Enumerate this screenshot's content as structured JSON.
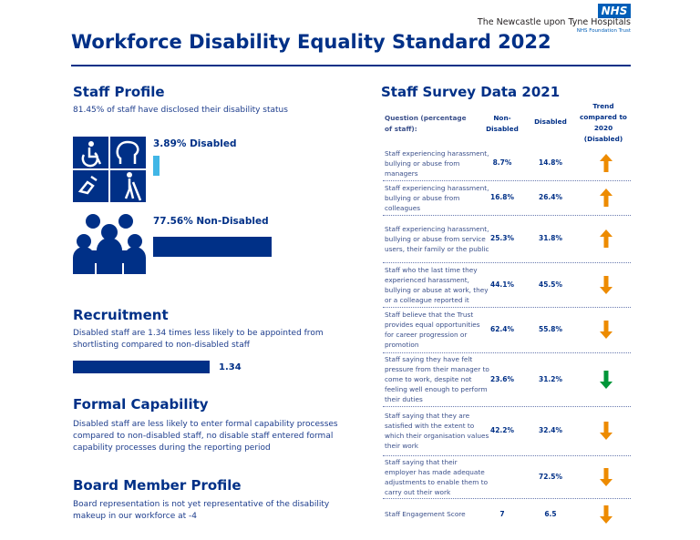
{
  "header": {
    "logo": "NHS",
    "org": "The Newcastle upon Tyne Hospitals",
    "org_sub": "NHS Foundation Trust",
    "title": "Workforce Disability Equality Standard 2022"
  },
  "staff_profile": {
    "heading": "Staff Profile",
    "text": "81.45% of staff have disclosed their disability status",
    "disabled": {
      "value": 3.89,
      "label": "3.89% Disabled",
      "color": "#41b6e6"
    },
    "non_disabled": {
      "value": 77.56,
      "label": "77.56% Non-Disabled",
      "color": "#003087"
    }
  },
  "recruitment": {
    "heading": "Recruitment",
    "text": "Disabled staff are 1.34 times less likely to be appointed from shortlisting compared to non-disabled staff",
    "ratio": 1.34
  },
  "formal_capability": {
    "heading": "Formal Capability",
    "text": "Disabled staff are less likely to enter formal capability processes compared to non-disabled staff, no disable staff entered formal capability processes during the reporting period"
  },
  "board": {
    "heading": "Board Member Profile",
    "text": "Board representation is not yet representative of the disability makeup in our workforce at -4"
  },
  "survey": {
    "heading": "Staff Survey Data 2021",
    "columns": [
      "Question (percentage of staff):",
      "Non-Disabled",
      "Disabled",
      "Trend compared to 2020 (Disabled)"
    ],
    "rows": [
      {
        "question": "Staff experiencing harassment, bullying or abuse from managers",
        "non_disabled": "8.7%",
        "disabled": "14.8%",
        "trend": {
          "direction": "up",
          "color": "#ed8b00"
        }
      },
      {
        "question": "Staff experiencing harassment, bullying or abuse from colleagues",
        "non_disabled": "16.8%",
        "disabled": "26.4%",
        "trend": {
          "direction": "up",
          "color": "#ed8b00"
        }
      },
      {
        "question": "Staff experiencing harassment, bullying or abuse from service users, their family or the public",
        "non_disabled": "25.3%",
        "disabled": "31.8%",
        "trend": {
          "direction": "up",
          "color": "#ed8b00"
        }
      },
      {
        "question": "Staff who the last time they experienced harassment, bullying or abuse at work, they or a colleague reported it",
        "non_disabled": "44.1%",
        "disabled": "45.5%",
        "trend": {
          "direction": "down",
          "color": "#ed8b00"
        }
      },
      {
        "question": "Staff believe that the Trust provides equal opportunities for career progression or promotion",
        "non_disabled": "62.4%",
        "disabled": "55.8%",
        "trend": {
          "direction": "down",
          "color": "#ed8b00"
        }
      },
      {
        "question": "Staff saying they have felt pressure from their manager to come to work, despite not feeling well enough to perform their duties",
        "non_disabled": "23.6%",
        "disabled": "31.2%",
        "trend": {
          "direction": "down",
          "color": "#009639"
        }
      },
      {
        "question": "Staff saying that they are satisfied with the extent to which their organisation values their work",
        "non_disabled": "42.2%",
        "disabled": "32.4%",
        "trend": {
          "direction": "down",
          "color": "#ed8b00"
        }
      },
      {
        "question": "Staff saying that their employer has made adequate adjustments to enable them to carry out their work",
        "non_disabled": null,
        "disabled": "72.5%",
        "trend": {
          "direction": "down",
          "color": "#ed8b00"
        }
      },
      {
        "question": "Staff Engagement Score",
        "non_disabled": "7",
        "disabled": "6.5",
        "trend": {
          "direction": "down",
          "color": "#ed8b00"
        }
      }
    ]
  }
}
